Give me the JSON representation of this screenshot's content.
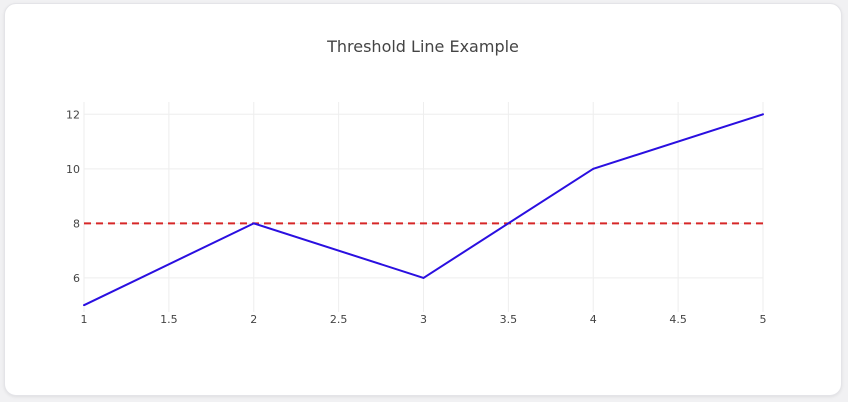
{
  "chart_data": {
    "type": "line",
    "title": "Threshold Line Example",
    "xlabel": "",
    "ylabel": "",
    "x": [
      1,
      2,
      3,
      4,
      5
    ],
    "series": [
      {
        "values": [
          5,
          8,
          6,
          10,
          12
        ],
        "color": "#2a0fe0"
      }
    ],
    "threshold": {
      "value": 8,
      "color": "#d62728",
      "style": "dashed"
    },
    "xlim": [
      1,
      5
    ],
    "ylim": [
      4.75,
      12.45
    ],
    "xticks": [
      1,
      1.5,
      2,
      2.5,
      3,
      3.5,
      4,
      4.5,
      5
    ],
    "yticks": [
      6,
      8,
      10,
      12
    ],
    "grid": true,
    "grid_color": "#eeeeee"
  }
}
